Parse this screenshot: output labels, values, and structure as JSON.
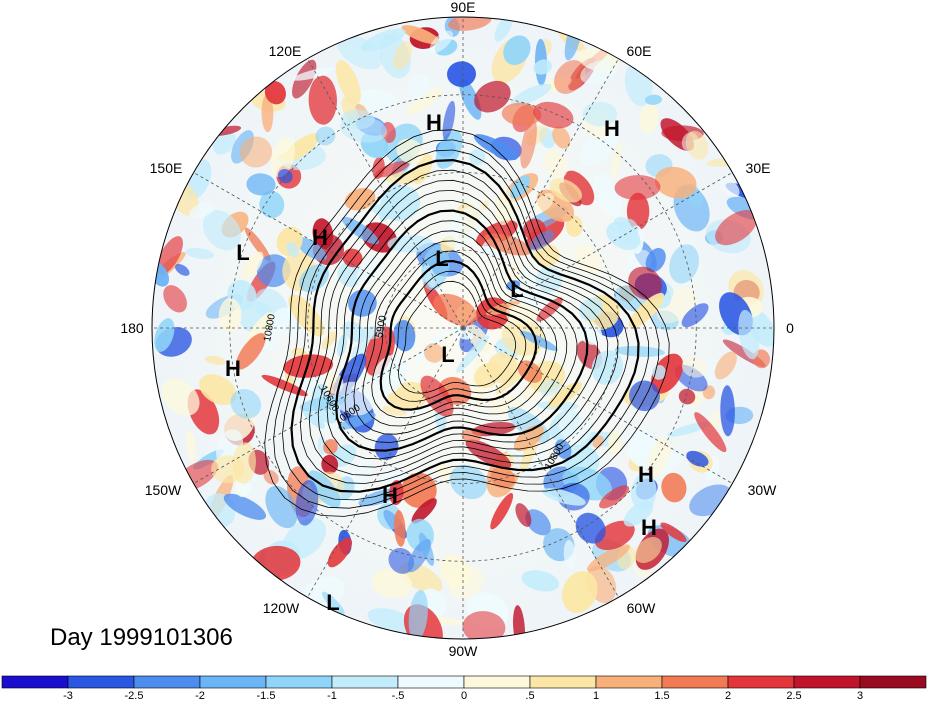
{
  "map": {
    "projection": "north polar stereographic",
    "longitude_labels": [
      "90E",
      "60E",
      "30E",
      "0",
      "30W",
      "60W",
      "90W",
      "120W",
      "150W",
      "180",
      "150E",
      "120E"
    ],
    "contour_labels": [
      "10800",
      "10800",
      "10800",
      "10600",
      "5900"
    ],
    "pressure_centers": [
      {
        "type": "H"
      },
      {
        "type": "H"
      },
      {
        "type": "H"
      },
      {
        "type": "H"
      },
      {
        "type": "H"
      },
      {
        "type": "H"
      },
      {
        "type": "H"
      },
      {
        "type": "L"
      },
      {
        "type": "L"
      },
      {
        "type": "L"
      },
      {
        "type": "L"
      },
      {
        "type": "L"
      }
    ],
    "date_label": "Day 1999101306"
  },
  "colorbar": {
    "ticks": [
      "-3",
      "-2.5",
      "-2",
      "-1.5",
      "-1",
      "-.5",
      "0",
      ".5",
      "1",
      "1.5",
      "2",
      "2.5",
      "3"
    ],
    "colors": [
      "#1a0ecf",
      "#2a56e4",
      "#4e8df0",
      "#6bb4f5",
      "#8fd5f9",
      "#c2ecfc",
      "#eefbfe",
      "#fdf8dc",
      "#fce6a5",
      "#f8b07b",
      "#f27a55",
      "#e3353a",
      "#c1142a",
      "#9a0a20"
    ]
  }
}
